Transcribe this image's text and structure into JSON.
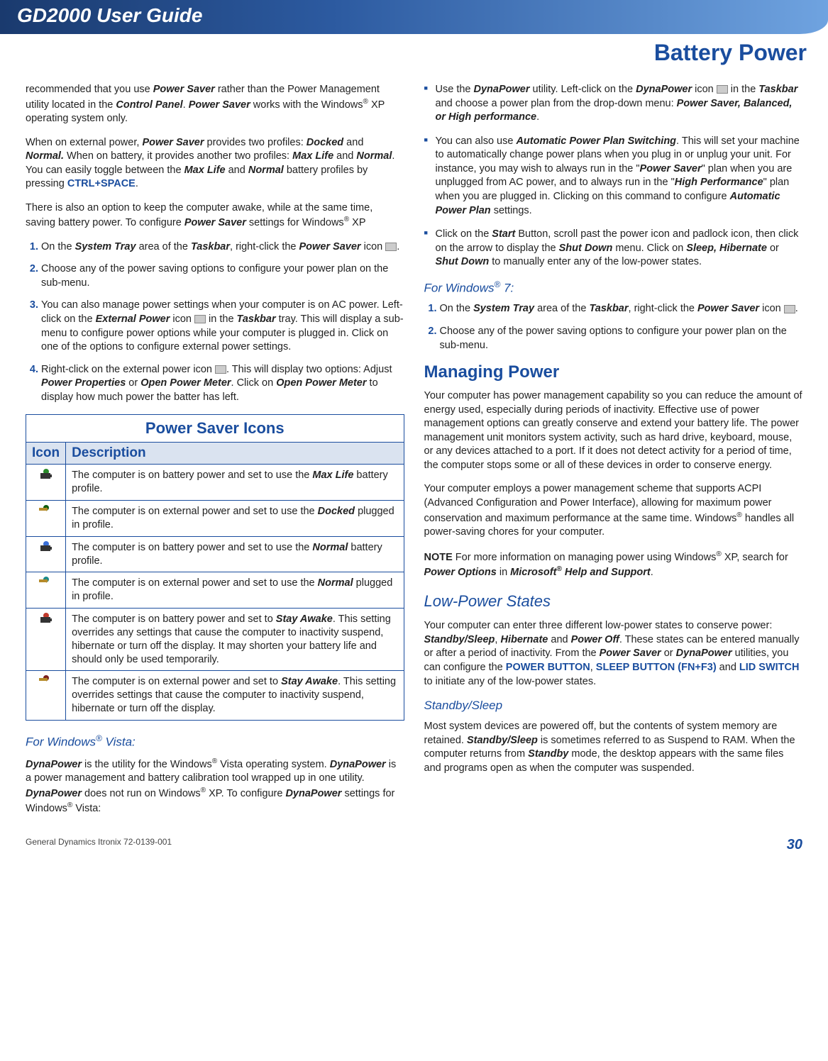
{
  "header": {
    "guide_title": "GD2000 User Guide",
    "section": "Battery Power"
  },
  "col1": {
    "p1_parts": [
      "recommended that you use ",
      "Power Saver",
      " rather than the Power Management utility located in the ",
      "Control Panel",
      ". ",
      "Power Saver",
      " works with the Windows",
      "®",
      " XP operating system only."
    ],
    "p2_parts": [
      "When on external power, ",
      "Power Saver",
      " provides two profiles: ",
      "Docked",
      " and ",
      "Normal.",
      " When on battery, it provides another two profiles: ",
      "Max Life",
      " and ",
      "Normal",
      ". You can easily toggle between the ",
      "Max Life",
      " and ",
      "Normal",
      " battery profiles by pressing "
    ],
    "p2_kbd": "CTRL+SPACE",
    "p3_parts": [
      "There is also an option to keep the computer awake, while at the same time, saving battery power. To configure ",
      "Power Saver",
      " settings for Windows",
      "®",
      " XP"
    ],
    "ol1": [
      {
        "pre": "On the ",
        "b1": "System Tray",
        "mid1": " area of the ",
        "b2": "Taskbar",
        "mid2": ", right-click the ",
        "b3": "Power Saver",
        "post": " icon ",
        "iconAfter": true,
        "tail": "."
      },
      {
        "text": "Choose any of the power saving options to configure your power plan on the sub-menu."
      },
      {
        "pre": "You can also manage power settings when your computer is on AC power.  Left-click on the ",
        "b1": "External Power",
        "mid1": " icon ",
        "icon": true,
        "mid2": " in the ",
        "b2": "Taskbar",
        "post": " tray.  This will display a sub-menu to configure power options while your computer is plugged in.  Click on one of the options to configure external power settings."
      },
      {
        "pre": "Right-click on the external power icon ",
        "icon": true,
        "mid1": ".  This will display two options:  Adjust ",
        "b1": "Power Properties",
        "mid2": " or ",
        "b2": "Open Power Meter",
        "mid3": ". Click on ",
        "b3": "Open Power Meter",
        "post": " to display how much power the batter has left."
      }
    ],
    "table": {
      "caption": "Power Saver  Icons",
      "col_icon": "Icon",
      "col_desc": "Description",
      "rows": [
        {
          "icon": "batt-green",
          "parts": [
            "The computer is on battery power and set to use the ",
            "Max Life",
            " battery profile."
          ]
        },
        {
          "icon": "plug-darkgreen",
          "parts": [
            "The computer is on external power and set to use the ",
            "Docked",
            " plugged in profile."
          ]
        },
        {
          "icon": "batt-blue",
          "parts": [
            "The computer is on battery power and set to use the ",
            "Normal",
            " battery profile."
          ]
        },
        {
          "icon": "plug-teal",
          "parts": [
            "The computer is on external power and set to use the ",
            "Normal",
            " plugged in profile."
          ]
        },
        {
          "icon": "batt-red",
          "parts": [
            "The computer is on battery power and set to ",
            "Stay Awake",
            ".   This setting overrides any settings that cause the computer to inactivity suspend, hibernate or turn off the display. It may shorten your battery life and should only be used temporarily."
          ]
        },
        {
          "icon": "plug-darkred",
          "parts": [
            "The computer is on external power and set to ",
            "Stay Awake",
            ". This setting overrides settings that cause the computer to inactivity suspend, hibernate or turn off the display."
          ]
        }
      ]
    },
    "vista_heading": "For Windows® Vista:",
    "vista_p_parts": [
      "DynaPower",
      " is the utility for the Windows",
      "®",
      " Vista operating system.  ",
      "DynaPower",
      " is a power management and battery calibration tool wrapped up in one utility.  ",
      "DynaPower",
      " does not run on Windows",
      "®",
      " XP.  To configure ",
      "DynaPower",
      " settings for Windows",
      "®",
      " Vista:"
    ]
  },
  "col2": {
    "bullets": [
      {
        "parts": [
          "Use the ",
          "DynaPower",
          " utility.  Left-click on the ",
          "DynaPower",
          " icon "
        ],
        "icon": true,
        "parts2": [
          " in the ",
          "Taskbar",
          " and choose a power plan from the drop-down menu:  ",
          "Power Saver, Balanced, or High performance",
          "."
        ]
      },
      {
        "parts": [
          "You can also use ",
          "Automatic Power Plan Switching",
          ".  This will set your machine to automatically change power plans when you  plug in or unplug your unit.  For instance, you may wish to always run in the \"",
          "Power Saver",
          "\"  plan when you are unplugged from AC power, and to always run in the \"",
          "High Performance",
          "\" plan when you are plugged in.  Clicking on this command to configure ",
          "Automatic Power Plan",
          " settings."
        ]
      },
      {
        "parts": [
          "Click on the ",
          "Start",
          " Button, scroll past the power icon and padlock icon, then click on the arrow to display the ",
          "Shut Down",
          " menu. Click on ",
          "Sleep, Hibernate",
          " or ",
          "Shut Down",
          " to manually enter any of the low-power states."
        ]
      }
    ],
    "win7_heading": "For Windows® 7:",
    "win7_ol": [
      {
        "pre": "On the ",
        "b1": "System Tray",
        "mid1": " area of the ",
        "b2": "Taskbar",
        "mid2": ", right-click the ",
        "b3": "Power Saver",
        "post": " icon ",
        "iconAfter": true,
        "tail": "."
      },
      {
        "text": "Choose any of the power saving options to configure your power plan on the sub-menu."
      }
    ],
    "h2": "Managing Power",
    "mp_p1": "Your computer has power management capability so you can reduce the amount of energy used, especially during periods of inactivity.  Effective use of power management options can greatly conserve and extend your battery life. The power management unit monitors system activity, such as hard drive, keyboard, mouse, or any devices attached to a port. If it does not detect activity for a period of time, the computer stops some or all of these devices in order to conserve energy.",
    "mp_p2_parts": [
      "Your computer employs a power management scheme that supports ACPI (Advanced Configuration and Power Interface), allowing for maximum power conservation and maximum performance at the same time. Windows",
      "®",
      " handles all power-saving chores for your computer."
    ],
    "note_label": "NOTE",
    "note_parts": [
      "  For more information on managing power using Windows",
      "®",
      " XP, search for ",
      "Power Options",
      " in ",
      "Microsoft",
      "®",
      " Help and Support",
      "."
    ],
    "lps_heading": "Low-Power States",
    "lps_p_parts": [
      "Your computer can enter three different low-power states to conserve power: ",
      "Standby/Sleep",
      ", ",
      "Hibernate",
      " and ",
      "Power Off",
      ". These states can be entered manually or after a period of inactivity.  From the ",
      "Power Saver",
      " or ",
      "DynaPower",
      " utilities, you can configure the "
    ],
    "lps_links": [
      "POWER BUTTON",
      ", ",
      "SLEEP BUTTON (FN+F3)"
    ],
    "lps_and": " and ",
    "lps_link3": "LID SWITCH",
    "lps_tail": " to initiate any of the low-power states.",
    "standby_heading": "Standby/Sleep",
    "standby_p_parts": [
      "Most system devices are powered off, but the contents of system memory are retained.  ",
      "Standby/Sleep",
      " is sometimes referred to as Suspend to RAM.  When the computer returns from ",
      "Standby",
      " mode, the desktop appears with the same files and programs open as when the computer was suspended."
    ]
  },
  "footer": {
    "left": "General Dynamics Itronix 72-0139-001",
    "page": "30"
  },
  "style": {
    "accent": "#1a4d9e",
    "header_grad_from": "#1a3a6e",
    "header_grad_to": "#6fa3e0"
  }
}
